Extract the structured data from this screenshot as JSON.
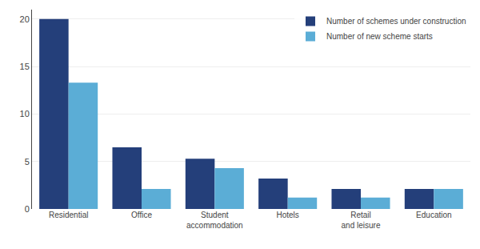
{
  "chart_data": {
    "type": "bar",
    "categories": [
      "Residential",
      "Office",
      "Student\naccommodation",
      "Hotels",
      "Retail\nand leisure",
      "Education"
    ],
    "series": [
      {
        "name": "Number of schemes under construction",
        "color": "#243f7a",
        "values": [
          20,
          6.5,
          5.3,
          3.2,
          2.1,
          2.1
        ]
      },
      {
        "name": "Number of new scheme starts",
        "color": "#5badd6",
        "values": [
          13.3,
          2.1,
          4.3,
          1.2,
          1.2,
          2.1
        ]
      }
    ],
    "ylim": [
      0,
      21
    ],
    "yticks": [
      0,
      5,
      10,
      15,
      20
    ],
    "grid": true,
    "legend": "upper right"
  }
}
